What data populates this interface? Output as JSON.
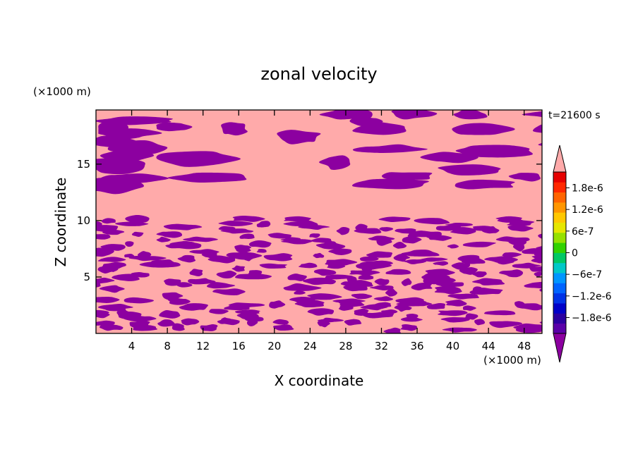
{
  "chart_data": {
    "type": "heatmap",
    "title": "zonal velocity",
    "xlabel": "X coordinate",
    "ylabel": "Z coordinate",
    "x_unit": "(×1000 m)",
    "y_unit": "(×1000 m)",
    "time_label": "t=21600 s",
    "xlim": [
      0,
      50
    ],
    "ylim": [
      0,
      19.8
    ],
    "xticks": [
      4,
      8,
      12,
      16,
      20,
      24,
      28,
      32,
      36,
      40,
      44,
      48
    ],
    "yticks": [
      5,
      10,
      15
    ],
    "grid": false,
    "colorbar": {
      "levels": [
        -2.1e-06,
        -1.8e-06,
        -1.5e-06,
        -1.2e-06,
        -9e-07,
        -6e-07,
        -3e-07,
        0,
        3e-07,
        6e-07,
        9e-07,
        1.2e-06,
        1.5e-06,
        1.8e-06,
        2.1e-06
      ],
      "colors": [
        "#5a00a8",
        "#2a00a0",
        "#0000c8",
        "#0032e6",
        "#0064ff",
        "#0096ff",
        "#00c8c8",
        "#00c864",
        "#32d200",
        "#96e100",
        "#e6e600",
        "#ffc800",
        "#ff9600",
        "#ff6400",
        "#ff2800",
        "#e60000"
      ],
      "under_color": "#8c00a0",
      "over_color": "#ffaaaa",
      "labels": [
        {
          "text": "1.8e-6",
          "value": 1.8e-06
        },
        {
          "text": "1.2e-6",
          "value": 1.2e-06
        },
        {
          "text": "6e-7",
          "value": 6e-07
        },
        {
          "text": "0",
          "value": 0
        },
        {
          "text": "−6e-7",
          "value": -6e-07
        },
        {
          "text": "−1.2e-6",
          "value": -1.2e-06
        },
        {
          "text": "−1.8e-6",
          "value": -1.8e-06
        }
      ]
    },
    "field_values_shown": [
      "above 2.1e-6 (pink)",
      "below -2.1e-6 (purple)"
    ]
  }
}
